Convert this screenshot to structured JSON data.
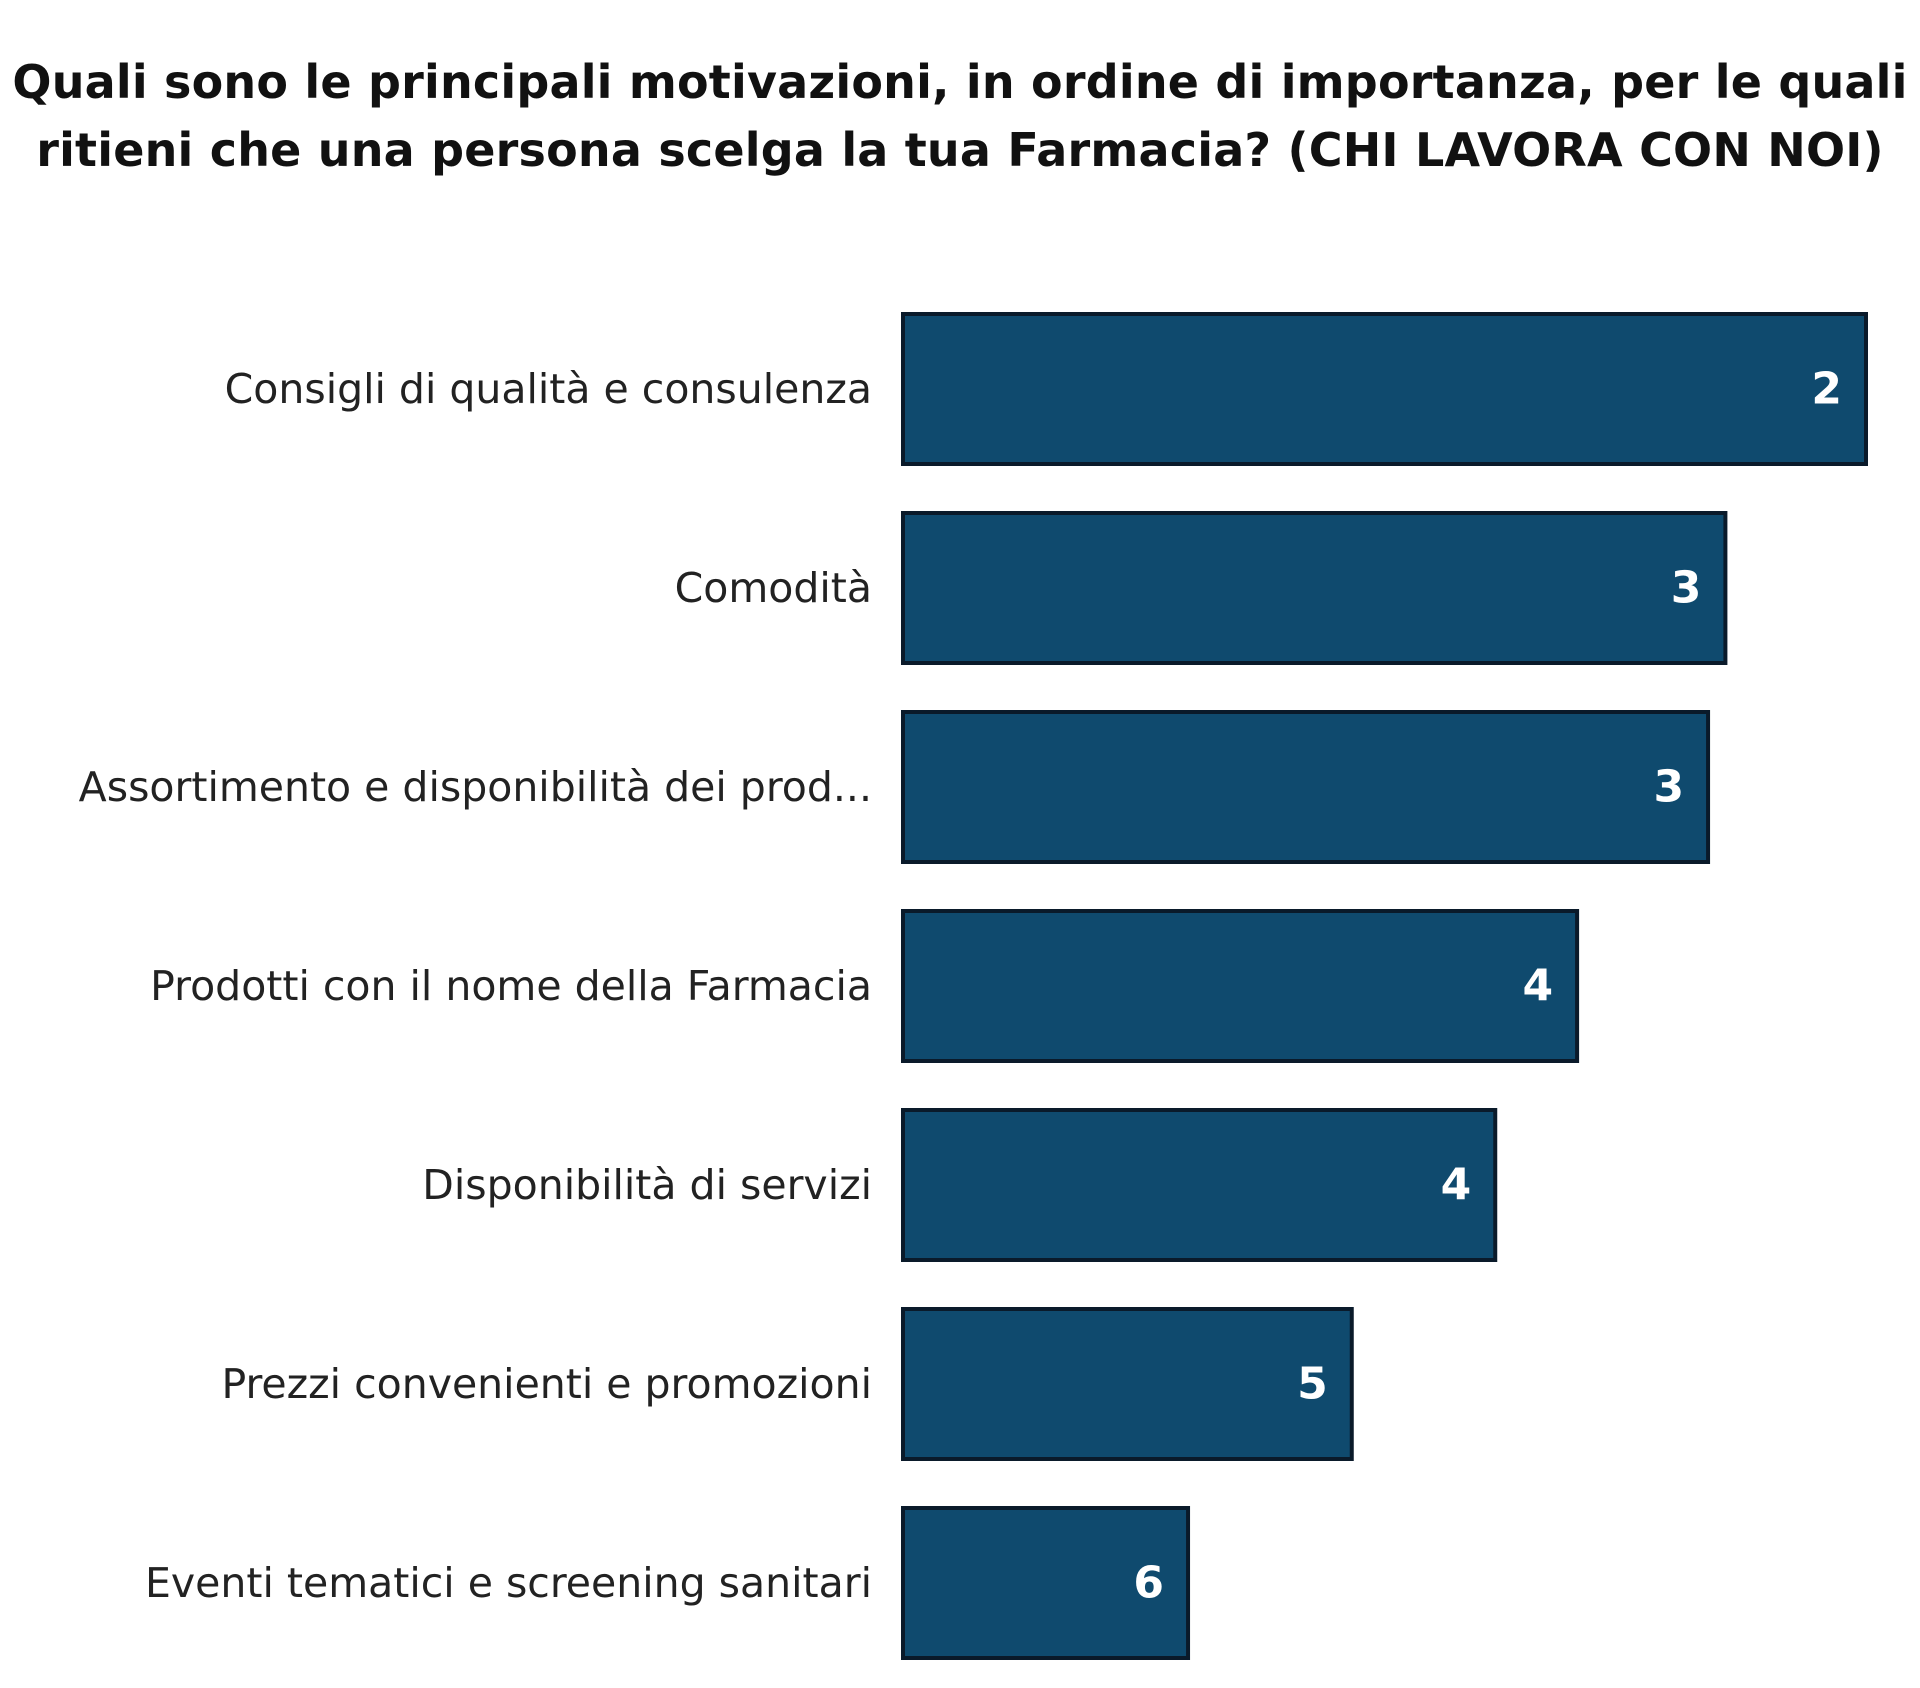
{
  "chart_data": {
    "type": "bar",
    "orientation": "horizontal",
    "title_lines": [
      "Quali sono le principali motivazioni, in ordine di importanza, per le quali",
      "ritieni che una persona scelga la tua Farmacia? (CHI LAVORA CON NOI)"
    ],
    "categories": [
      "Consigli di qualità e consulenza",
      "Comodità",
      "Assortimento e disponibilità dei prod...",
      "Prodotti con il nome della Farmacia",
      "Disponibilità di servizi",
      "Prezzi convenienti e promozioni",
      "Eventi tematici e screening sanitari"
    ],
    "values": [
      2,
      3,
      3,
      4,
      4,
      5,
      6
    ],
    "bar_fraction": [
      1.0,
      0.854,
      0.836,
      0.7,
      0.615,
      0.466,
      0.296
    ],
    "bar_color": "#0f4a6e",
    "bar_border_color": "#0a1a2a",
    "value_label_color": "#ffffff",
    "grid": false,
    "legend": "none"
  }
}
